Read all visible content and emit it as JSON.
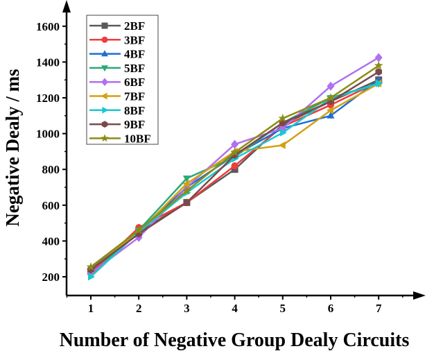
{
  "chart_data": {
    "type": "line",
    "title": "",
    "xlabel": "Number of Negative Group Dealy Circuits",
    "ylabel": "Negative Dealy / ms",
    "x": [
      1,
      2,
      3,
      4,
      5,
      6,
      7
    ],
    "x_ticks": [
      "1",
      "2",
      "3",
      "4",
      "5",
      "6",
      "7"
    ],
    "y_ticks": [
      "200",
      "400",
      "600",
      "800",
      "1000",
      "1200",
      "1400",
      "1600"
    ],
    "ylim": [
      140,
      1700
    ],
    "xlim": [
      0.5,
      8.2
    ],
    "grid": false,
    "legend_position": "top-left",
    "series": [
      {
        "name": "2BF",
        "color": "#5a5a5a",
        "marker": "square",
        "values": [
          230,
          450,
          615,
          800,
          1050,
          1180,
          1300
        ]
      },
      {
        "name": "3BF",
        "color": "#f03c3c",
        "marker": "circle",
        "values": [
          220,
          475,
          615,
          820,
          1040,
          1160,
          1290
        ]
      },
      {
        "name": "4BF",
        "color": "#1f6ed4",
        "marker": "triangle-up",
        "values": [
          250,
          455,
          700,
          880,
          1030,
          1100,
          1300
        ]
      },
      {
        "name": "5BF",
        "color": "#2ca87a",
        "marker": "triangle-down",
        "values": [
          210,
          460,
          750,
          870,
          1060,
          1200,
          1280
        ]
      },
      {
        "name": "6BF",
        "color": "#b070f0",
        "marker": "diamond",
        "values": [
          220,
          420,
          700,
          940,
          1030,
          1265,
          1425
        ]
      },
      {
        "name": "7BF",
        "color": "#d4a010",
        "marker": "triangle-left",
        "values": [
          240,
          450,
          720,
          900,
          935,
          1130,
          1280
        ]
      },
      {
        "name": "8BF",
        "color": "#18c8d0",
        "marker": "triangle-right",
        "values": [
          200,
          450,
          670,
          860,
          1005,
          1195,
          1280
        ]
      },
      {
        "name": "9BF",
        "color": "#7a4a4a",
        "marker": "hexagon",
        "values": [
          240,
          440,
          615,
          880,
          1060,
          1180,
          1345
        ]
      },
      {
        "name": "10BF",
        "color": "#8c8c14",
        "marker": "star",
        "values": [
          255,
          460,
          680,
          895,
          1085,
          1200,
          1380
        ]
      }
    ]
  }
}
